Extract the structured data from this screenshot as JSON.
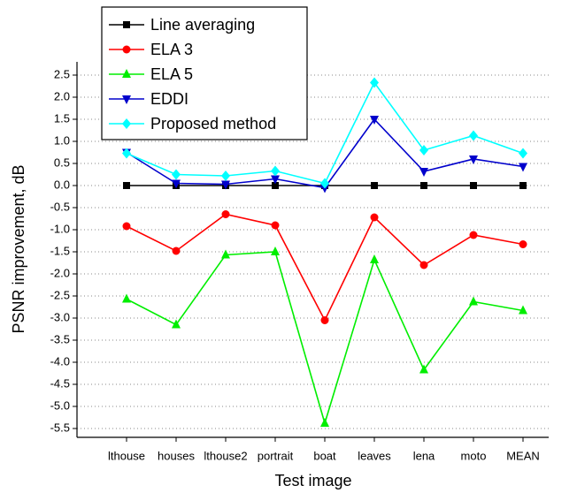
{
  "chart_data": {
    "type": "line",
    "x_label": "Test image",
    "y_label": "PSNR improvement, dB",
    "categories": [
      "lthouse",
      "houses",
      "lthouse2",
      "portrait",
      "boat",
      "leaves",
      "lena",
      "moto",
      "MEAN"
    ],
    "series": [
      {
        "name": "Line averaging",
        "color": "#000000",
        "marker": "square",
        "values": [
          0,
          0,
          0,
          0,
          0,
          0,
          0,
          0,
          0
        ]
      },
      {
        "name": "ELA 3",
        "color": "#ff0000",
        "marker": "circle",
        "values": [
          -0.92,
          -1.48,
          -0.65,
          -0.9,
          -3.05,
          -0.72,
          -1.8,
          -1.12,
          -1.33
        ]
      },
      {
        "name": "ELA 5",
        "color": "#00ee00",
        "marker": "triangle-up",
        "values": [
          -2.57,
          -3.15,
          -1.57,
          -1.5,
          -5.38,
          -1.68,
          -4.17,
          -2.63,
          -2.83
        ]
      },
      {
        "name": "EDDI",
        "color": "#0000cc",
        "marker": "triangle-down",
        "values": [
          0.75,
          0.05,
          0.03,
          0.15,
          -0.05,
          1.5,
          0.32,
          0.6,
          0.43
        ]
      },
      {
        "name": "Proposed method",
        "color": "#00ffff",
        "marker": "diamond",
        "values": [
          0.73,
          0.25,
          0.22,
          0.33,
          0.05,
          2.33,
          0.8,
          1.13,
          0.73
        ]
      }
    ],
    "ylim": [
      -5.7,
      2.8
    ],
    "yticks": [
      -5.5,
      {
        "value": -5,
        "label": "-5.0"
      },
      -4.5,
      {
        "value": -4,
        "label": "-4.0"
      },
      -3.5,
      {
        "value": -3,
        "label": "-3.0"
      },
      -2.5,
      {
        "value": -2,
        "label": "-2.0"
      },
      -1.5,
      {
        "value": -1,
        "label": "-1.0"
      },
      -0.5,
      {
        "value": 0,
        "label": "0.0"
      },
      0.5,
      {
        "value": 1,
        "label": "1.0"
      },
      1.5,
      {
        "value": 2,
        "label": "2.0"
      },
      2.5
    ],
    "grid": true,
    "legend": "top-left"
  }
}
